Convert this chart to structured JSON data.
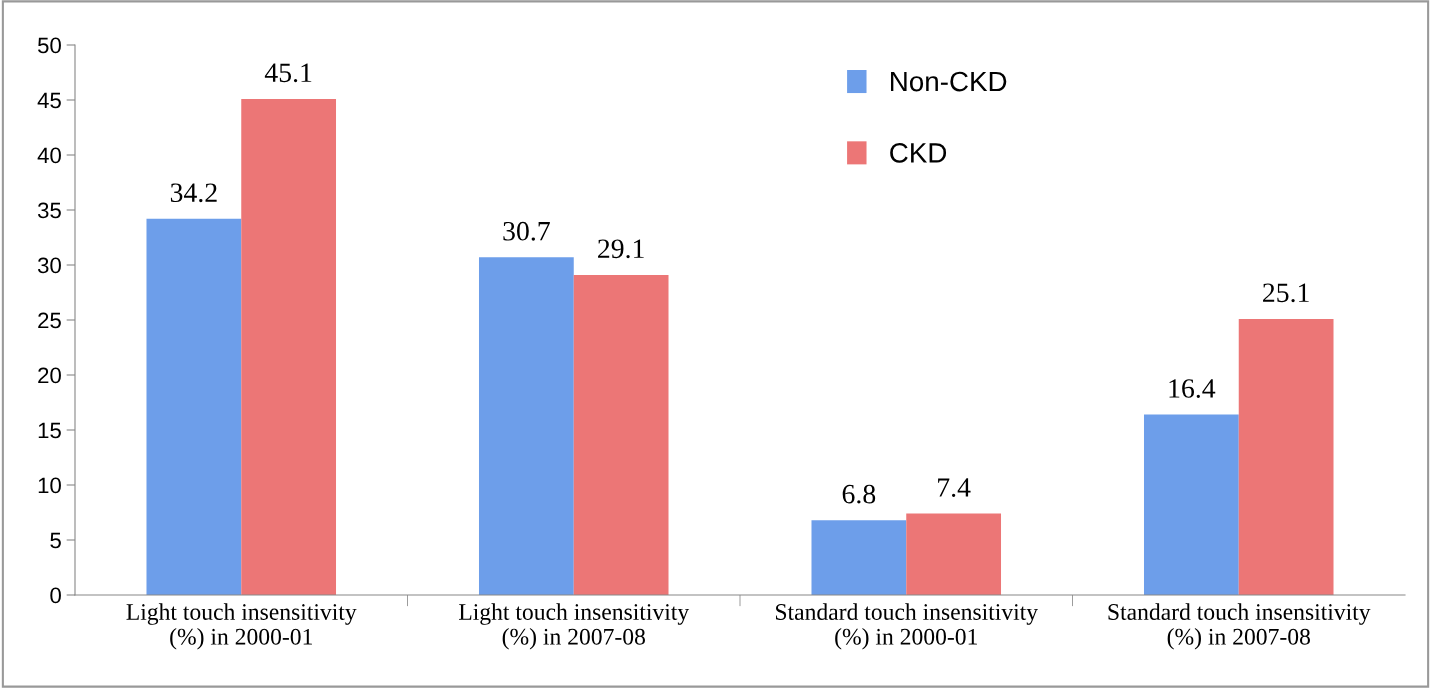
{
  "chart_data": {
    "type": "bar",
    "categories": [
      "Light touch insensitivity\n(%) in 2000-01",
      "Light touch insensitivity\n(%) in 2007-08",
      "Standard touch insensitivity\n(%) in 2000-01",
      "Standard touch insensitivity\n(%) in 2007-08"
    ],
    "series": [
      {
        "name": "Non-CKD",
        "color": "#6d9eea",
        "values": [
          34.2,
          30.7,
          6.8,
          16.4
        ]
      },
      {
        "name": "CKD",
        "color": "#ec7676",
        "values": [
          45.1,
          29.1,
          7.4,
          25.1
        ]
      }
    ],
    "ylim": [
      0,
      50
    ],
    "yticks": [
      0,
      5,
      10,
      15,
      20,
      25,
      30,
      35,
      40,
      45,
      50
    ],
    "data_labels": true,
    "grid": false,
    "legend": "top right"
  }
}
